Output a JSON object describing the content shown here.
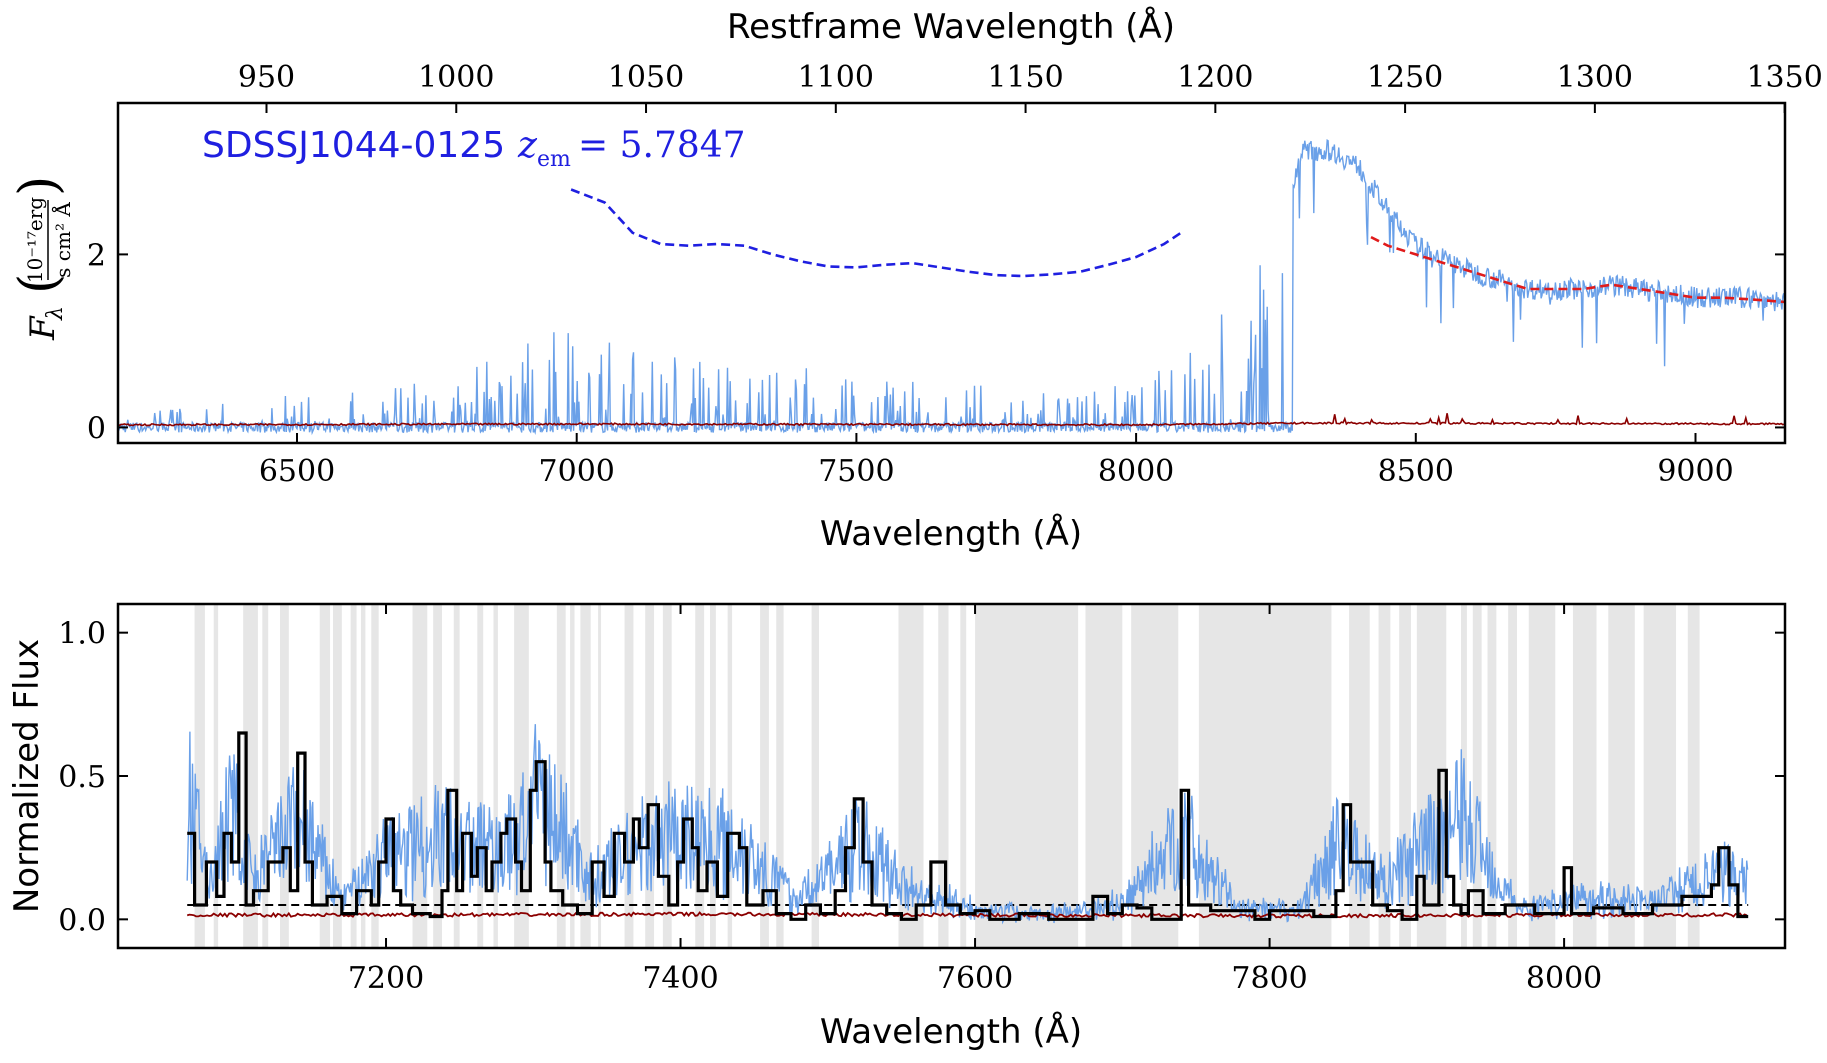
{
  "chart_data": [
    {
      "type": "line",
      "panel": "top",
      "annotation": {
        "name": "SDSSJ1044-0125",
        "z_label": "z",
        "z_sub": "em",
        "z_value": "= 5.7847",
        "color": "#1f1fe0"
      },
      "xlabel": "Wavelength (Å)",
      "top_xlabel": "Restframe Wavelength (Å)",
      "ylabel": {
        "symbol": "F",
        "sub": "λ",
        "num": "10⁻¹⁷erg",
        "den": "s cm² Å"
      },
      "xlim": [
        6180,
        9160
      ],
      "ylim": [
        -0.18,
        3.75
      ],
      "xticks": [
        6500,
        7000,
        7500,
        8000,
        8500,
        9000
      ],
      "xtick_labels": [
        "6500",
        "7000",
        "7500",
        "8000",
        "8500",
        "9000"
      ],
      "yticks": [
        0,
        2
      ],
      "ytick_labels": [
        "0",
        "2"
      ],
      "top_xticks": [
        950,
        1000,
        1050,
        1100,
        1150,
        1200,
        1250,
        1300,
        1350
      ],
      "top_xtick_labels": [
        "950",
        "1000",
        "1050",
        "1100",
        "1150",
        "1200",
        "1250",
        "1300",
        "1350"
      ],
      "z_em": 5.7847,
      "series": [
        {
          "name": "",
          "role": "flux",
          "color": "#6aa0e8",
          "x": [
            6180,
            6300,
            6400,
            6500,
            6600,
            6700,
            6800,
            6900,
            6950,
            7000,
            7050,
            7100,
            7200,
            7300,
            7400,
            7500,
            7600,
            7700,
            7800,
            7900,
            8000,
            8100,
            8150,
            8200,
            8250,
            8280,
            8300,
            8350,
            8400,
            8450,
            8500,
            8600,
            8700,
            8800,
            8850,
            8900,
            9000,
            9100,
            9160
          ],
          "y": [
            0.1,
            0.15,
            0.2,
            0.25,
            0.3,
            0.35,
            0.4,
            0.7,
            0.8,
            0.8,
            0.7,
            0.6,
            0.5,
            0.45,
            0.45,
            0.4,
            0.35,
            0.35,
            0.3,
            0.3,
            0.3,
            0.6,
            0.9,
            1.0,
            1.6,
            2.8,
            3.2,
            3.2,
            3.0,
            2.5,
            2.1,
            1.8,
            1.6,
            1.6,
            1.65,
            1.6,
            1.5,
            1.5,
            1.45
          ]
        },
        {
          "name": "",
          "role": "error",
          "color": "#8b0000",
          "x": [
            6180,
            7000,
            8000,
            8300,
            9160
          ],
          "y": [
            0.03,
            0.04,
            0.03,
            0.05,
            0.04
          ]
        },
        {
          "name": "",
          "role": "continuum",
          "color": "#e01b1b",
          "x": [
            8420,
            8450,
            8500,
            8550,
            8600,
            8650,
            8700,
            8750,
            8800,
            8850,
            8900,
            8950,
            9000,
            9050,
            9100,
            9160
          ],
          "y": [
            2.2,
            2.1,
            2.0,
            1.9,
            1.8,
            1.7,
            1.6,
            1.6,
            1.6,
            1.65,
            1.6,
            1.55,
            1.5,
            1.5,
            1.48,
            1.45
          ]
        },
        {
          "name": "",
          "role": "continuum-model",
          "color": "#1f1fe0",
          "x": [
            6990,
            7050,
            7100,
            7150,
            7200,
            7250,
            7300,
            7350,
            7400,
            7450,
            7500,
            7550,
            7600,
            7650,
            7700,
            7750,
            7800,
            7850,
            7900,
            7950,
            8000,
            8050,
            8080
          ],
          "y": [
            2.75,
            2.6,
            2.25,
            2.12,
            2.1,
            2.12,
            2.1,
            2.0,
            1.92,
            1.86,
            1.85,
            1.88,
            1.9,
            1.85,
            1.8,
            1.76,
            1.75,
            1.77,
            1.8,
            1.88,
            1.97,
            2.12,
            2.25
          ]
        }
      ]
    },
    {
      "type": "line",
      "panel": "bottom",
      "xlabel": "Wavelength (Å)",
      "ylabel": "Normalized Flux",
      "xlim": [
        7018,
        8150
      ],
      "ylim": [
        -0.1,
        1.1
      ],
      "xticks": [
        7200,
        7400,
        7600,
        7800,
        8000
      ],
      "xtick_labels": [
        "7200",
        "7400",
        "7600",
        "7800",
        "8000"
      ],
      "yticks": [
        0.0,
        0.5,
        1.0
      ],
      "ytick_labels": [
        "0.0",
        "0.5",
        "1.0"
      ],
      "threshold": 0.05,
      "shaded_regions": [
        [
          7070,
          7077
        ],
        [
          7083,
          7086
        ],
        [
          7103,
          7113
        ],
        [
          7116,
          7120
        ],
        [
          7128,
          7134
        ],
        [
          7155,
          7162
        ],
        [
          7164,
          7170
        ],
        [
          7176,
          7180
        ],
        [
          7183,
          7186
        ],
        [
          7190,
          7195
        ],
        [
          7218,
          7228
        ],
        [
          7232,
          7238
        ],
        [
          7246,
          7250
        ],
        [
          7262,
          7266
        ],
        [
          7273,
          7276
        ],
        [
          7287,
          7297
        ],
        [
          7316,
          7322
        ],
        [
          7325,
          7328
        ],
        [
          7332,
          7339
        ],
        [
          7344,
          7346
        ],
        [
          7362,
          7368
        ],
        [
          7376,
          7382
        ],
        [
          7388,
          7394
        ],
        [
          7410,
          7416
        ],
        [
          7420,
          7424
        ],
        [
          7432,
          7435
        ],
        [
          7454,
          7460
        ],
        [
          7465,
          7470
        ],
        [
          7489,
          7494
        ],
        [
          7548,
          7565
        ],
        [
          7575,
          7582
        ],
        [
          7590,
          7594
        ],
        [
          7600,
          7670
        ],
        [
          7675,
          7700
        ],
        [
          7706,
          7738
        ],
        [
          7752,
          7842
        ],
        [
          7854,
          7868
        ],
        [
          7874,
          7882
        ],
        [
          7888,
          7896
        ],
        [
          7900,
          7920
        ],
        [
          7930,
          7934
        ],
        [
          7938,
          7944
        ],
        [
          7948,
          7954
        ],
        [
          7962,
          7968
        ],
        [
          7976,
          7994
        ],
        [
          8006,
          8022
        ],
        [
          8030,
          8048
        ],
        [
          8054,
          8076
        ],
        [
          8084,
          8092
        ]
      ],
      "series": [
        {
          "name": "",
          "role": "flux",
          "color": "#6aa0e8",
          "x": [
            7065,
            7080,
            7095,
            7110,
            7140,
            7170,
            7200,
            7240,
            7280,
            7305,
            7340,
            7370,
            7400,
            7440,
            7480,
            7520,
            7560,
            7600,
            7650,
            7700,
            7740,
            7780,
            7820,
            7845,
            7880,
            7930,
            7970,
            8010,
            8060,
            8110,
            8125
          ],
          "y": [
            0.65,
            0.2,
            0.6,
            0.2,
            0.55,
            0.1,
            0.35,
            0.45,
            0.35,
            0.65,
            0.2,
            0.4,
            0.45,
            0.4,
            0.1,
            0.4,
            0.15,
            0.05,
            0.03,
            0.08,
            0.45,
            0.05,
            0.05,
            0.4,
            0.2,
            0.55,
            0.05,
            0.12,
            0.1,
            0.25,
            0.2
          ]
        },
        {
          "name": "",
          "role": "binned-flux",
          "color": "#000000",
          "x": [
            7065,
            7070,
            7078,
            7085,
            7090,
            7095,
            7100,
            7105,
            7110,
            7120,
            7130,
            7135,
            7140,
            7145,
            7150,
            7160,
            7170,
            7180,
            7190,
            7195,
            7200,
            7205,
            7210,
            7218,
            7230,
            7238,
            7242,
            7248,
            7252,
            7258,
            7262,
            7268,
            7272,
            7278,
            7282,
            7288,
            7292,
            7298,
            7302,
            7308,
            7312,
            7320,
            7330,
            7340,
            7348,
            7355,
            7362,
            7368,
            7372,
            7378,
            7385,
            7392,
            7398,
            7402,
            7408,
            7412,
            7418,
            7425,
            7432,
            7440,
            7445,
            7450,
            7456,
            7465,
            7475,
            7485,
            7495,
            7505,
            7512,
            7518,
            7524,
            7530,
            7540,
            7550,
            7560,
            7570,
            7580,
            7590,
            7600,
            7610,
            7630,
            7650,
            7670,
            7680,
            7690,
            7700,
            7710,
            7720,
            7735,
            7740,
            7745,
            7760,
            7790,
            7800,
            7830,
            7845,
            7850,
            7855,
            7870,
            7880,
            7890,
            7900,
            7905,
            7915,
            7920,
            7925,
            7930,
            7935,
            7945,
            7960,
            7980,
            8000,
            8005,
            8020,
            8040,
            8060,
            8080,
            8100,
            8105,
            8112,
            8118
          ],
          "y": [
            0.3,
            0.05,
            0.2,
            0.08,
            0.3,
            0.2,
            0.65,
            0.05,
            0.1,
            0.2,
            0.25,
            0.1,
            0.58,
            0.2,
            0.05,
            0.08,
            0.02,
            0.1,
            0.05,
            0.2,
            0.35,
            0.1,
            0.05,
            0.02,
            0.01,
            0.1,
            0.45,
            0.1,
            0.3,
            0.15,
            0.25,
            0.1,
            0.2,
            0.3,
            0.35,
            0.2,
            0.1,
            0.45,
            0.55,
            0.2,
            0.1,
            0.05,
            0.02,
            0.2,
            0.08,
            0.3,
            0.2,
            0.35,
            0.25,
            0.4,
            0.15,
            0.05,
            0.2,
            0.35,
            0.25,
            0.1,
            0.2,
            0.08,
            0.3,
            0.25,
            0.05,
            0.05,
            0.1,
            0.02,
            0.0,
            0.05,
            0.02,
            0.1,
            0.25,
            0.42,
            0.2,
            0.05,
            0.02,
            0.0,
            0.05,
            0.2,
            0.05,
            0.02,
            0.03,
            0.0,
            0.02,
            0.0,
            0.0,
            0.08,
            0.02,
            0.05,
            0.04,
            0.0,
            0.0,
            0.45,
            0.05,
            0.03,
            0.0,
            0.03,
            0.01,
            0.1,
            0.4,
            0.2,
            0.05,
            0.03,
            0.0,
            0.15,
            0.05,
            0.52,
            0.15,
            0.05,
            0.02,
            0.1,
            0.02,
            0.05,
            0.02,
            0.18,
            0.02,
            0.04,
            0.02,
            0.05,
            0.08,
            0.12,
            0.25,
            0.12,
            0.01
          ]
        },
        {
          "name": "",
          "role": "error",
          "color": "#8b0000",
          "x": [
            7065,
            7200,
            7400,
            7600,
            7800,
            8000,
            8125
          ],
          "y": [
            0.015,
            0.015,
            0.018,
            0.015,
            0.012,
            0.015,
            0.015
          ]
        }
      ]
    }
  ]
}
